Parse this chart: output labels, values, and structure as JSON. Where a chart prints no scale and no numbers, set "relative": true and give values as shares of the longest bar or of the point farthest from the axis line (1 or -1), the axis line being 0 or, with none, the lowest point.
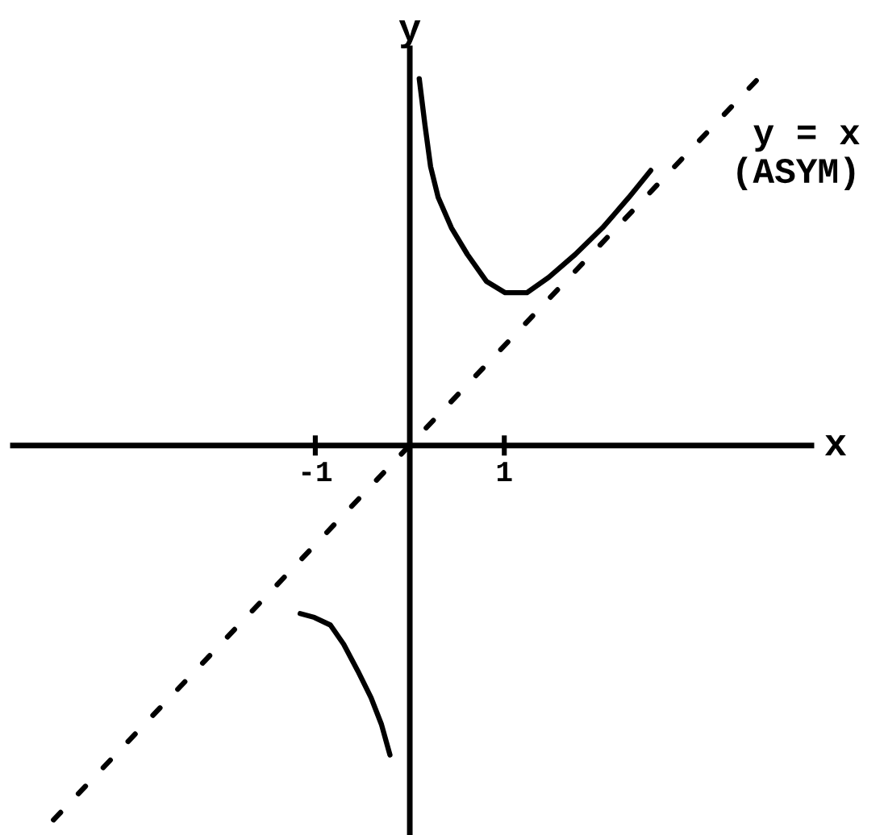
{
  "chart_data": {
    "type": "line",
    "xlabel": "x",
    "ylabel": "y",
    "relative": true,
    "line_style": "solid",
    "xlim": [
      -4.2,
      4.25
    ],
    "xticks": [
      -1,
      1
    ],
    "annotations": [
      {
        "text": "y = x\n(ASYM)",
        "x": 3.0,
        "y": 0.78
      }
    ],
    "series": [
      {
        "color": "#000000",
        "x": [
          0.1,
          0.16,
          0.22,
          0.3,
          0.44,
          0.61,
          0.81,
          1.01,
          1.24,
          1.47,
          1.75,
          2.04,
          2.32,
          2.55
        ],
        "values": [
          0.96,
          0.84,
          0.73,
          0.65,
          0.57,
          0.5,
          0.43,
          0.4,
          0.4,
          0.44,
          0.5,
          0.57,
          0.65,
          0.72
        ]
      },
      {
        "color": "#000000",
        "x": [
          -1.16,
          -1.01,
          -0.84,
          -0.7,
          -0.55,
          -0.41,
          -0.3,
          -0.21
        ],
        "values": [
          -0.44,
          -0.45,
          -0.47,
          -0.52,
          -0.59,
          -0.66,
          -0.73,
          -0.81
        ]
      },
      {
        "color": "#000000",
        "line_style": "dashed",
        "x": [
          -3.77,
          3.84
        ],
        "values": [
          -0.98,
          1.0
        ]
      }
    ]
  }
}
